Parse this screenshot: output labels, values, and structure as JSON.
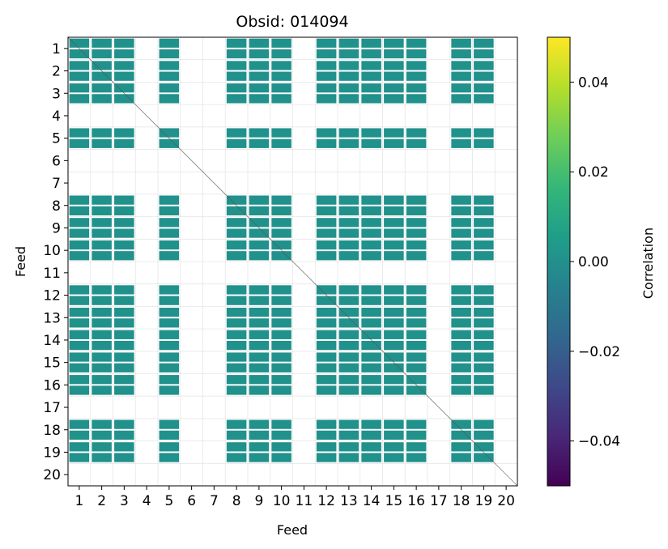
{
  "chart_data": {
    "type": "heatmap",
    "title": "Obsid: 014094",
    "xlabel": "Feed",
    "ylabel": "Feed",
    "x_ticks": [
      "1",
      "2",
      "3",
      "4",
      "5",
      "6",
      "7",
      "8",
      "9",
      "10",
      "11",
      "12",
      "13",
      "14",
      "15",
      "16",
      "17",
      "18",
      "19",
      "20"
    ],
    "y_ticks": [
      "1",
      "2",
      "3",
      "4",
      "5",
      "6",
      "7",
      "8",
      "9",
      "10",
      "11",
      "12",
      "13",
      "14",
      "15",
      "16",
      "17",
      "18",
      "19",
      "20"
    ],
    "active_feeds": [
      1,
      2,
      3,
      5,
      8,
      9,
      10,
      12,
      13,
      14,
      15,
      16,
      18,
      19
    ],
    "inactive_feeds": [
      4,
      6,
      7,
      11,
      17,
      20
    ],
    "cell_value": 0.0,
    "cell_color": "#21918c",
    "grid": true,
    "colorbar": {
      "label": "Correlation",
      "colormap": "viridis",
      "range": [
        -0.05,
        0.05
      ],
      "ticks": [
        -0.04,
        -0.02,
        0.0,
        0.02,
        0.04
      ],
      "tick_labels": [
        "−0.04",
        "−0.02",
        "0.00",
        "0.02",
        "0.04"
      ],
      "colors": [
        "#440154",
        "#482878",
        "#3e4989",
        "#31688e",
        "#26828e",
        "#1f9e89",
        "#35b779",
        "#6ece58",
        "#b5de2b",
        "#fde725"
      ]
    }
  }
}
